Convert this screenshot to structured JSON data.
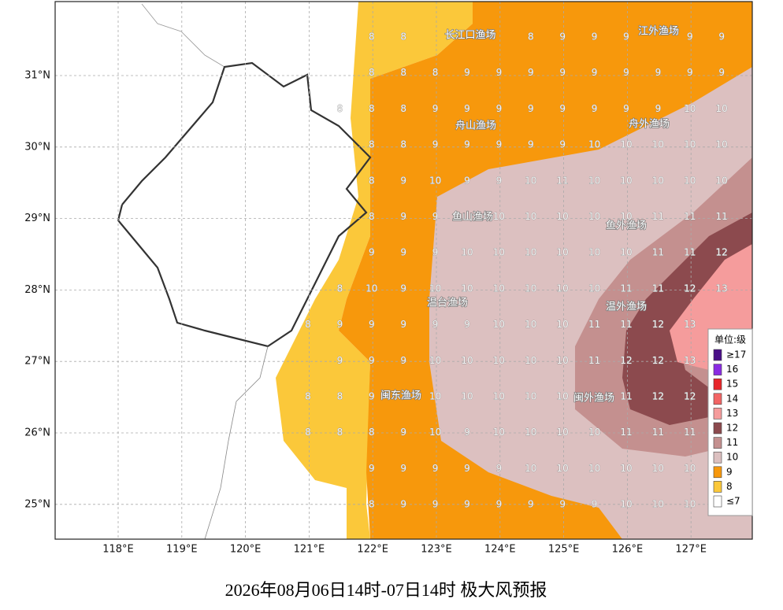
{
  "title": "2026年08月06日14时-07日14时 极大风预报",
  "x_labels": [
    "118°E",
    "119°E",
    "120°E",
    "121°E",
    "122°E",
    "123°E",
    "124°E",
    "125°E",
    "126°E",
    "127°E"
  ],
  "y_labels": [
    "31°N",
    "30°N",
    "29°N",
    "28°N",
    "27°N",
    "26°N",
    "25°N"
  ],
  "fishing_grounds": [
    "长江口渔场",
    "江外渔场",
    "舟山渔场",
    "舟外渔场",
    "鱼山渔场",
    "鱼外渔场",
    "温台渔场",
    "温外渔场",
    "闽东渔场",
    "闽外渔场"
  ],
  "grid": {
    "rows": [
      [
        null,
        null,
        8,
        8,
        null,
        null,
        null,
        8,
        9,
        9,
        9,
        null,
        9,
        9
      ],
      [
        null,
        null,
        8,
        8,
        8,
        9,
        9,
        9,
        9,
        9,
        9,
        9,
        9,
        9
      ],
      [
        null,
        8,
        8,
        8,
        9,
        9,
        9,
        9,
        9,
        9,
        9,
        9,
        10,
        10
      ],
      [
        null,
        null,
        8,
        8,
        9,
        9,
        9,
        9,
        9,
        10,
        10,
        10,
        10,
        10
      ],
      [
        null,
        null,
        8,
        9,
        10,
        9,
        9,
        10,
        11,
        10,
        10,
        10,
        10,
        10
      ],
      [
        null,
        null,
        8,
        9,
        9,
        null,
        10,
        10,
        10,
        10,
        10,
        11,
        11,
        11
      ],
      [
        null,
        null,
        9,
        9,
        9,
        10,
        10,
        10,
        10,
        10,
        10,
        11,
        11,
        12
      ],
      [
        null,
        8,
        10,
        9,
        10,
        10,
        10,
        10,
        10,
        10,
        11,
        11,
        12,
        13
      ],
      [
        8,
        9,
        9,
        9,
        9,
        9,
        10,
        10,
        10,
        11,
        11,
        12,
        13,
        null
      ],
      [
        null,
        9,
        9,
        9,
        10,
        10,
        10,
        10,
        10,
        11,
        12,
        12,
        13,
        null
      ],
      [
        8,
        8,
        9,
        null,
        10,
        10,
        10,
        10,
        10,
        null,
        11,
        12,
        12,
        null
      ],
      [
        8,
        8,
        8,
        9,
        10,
        9,
        10,
        10,
        10,
        10,
        11,
        11,
        11,
        null
      ],
      [
        null,
        null,
        9,
        9,
        9,
        9,
        9,
        10,
        10,
        10,
        10,
        10,
        10,
        null
      ],
      [
        null,
        null,
        8,
        9,
        9,
        9,
        9,
        9,
        9,
        9,
        10,
        10,
        10,
        null
      ]
    ]
  },
  "legend": {
    "title": "单位:级",
    "items": [
      {
        "label": "≥17",
        "color": "#4a0f88"
      },
      {
        "label": "16",
        "color": "#8a2be2"
      },
      {
        "label": "15",
        "color": "#e8262a"
      },
      {
        "label": "14",
        "color": "#f26565"
      },
      {
        "label": "13",
        "color": "#f59c9c"
      },
      {
        "label": "12",
        "color": "#8c4a4e"
      },
      {
        "label": "11",
        "color": "#c4908f"
      },
      {
        "label": "10",
        "color": "#dcc0c0"
      },
      {
        "label": "9",
        "color": "#f7980c"
      },
      {
        "label": "8",
        "color": "#fbc83a"
      },
      {
        "label": "≤7",
        "color": "#ffffff"
      }
    ]
  }
}
